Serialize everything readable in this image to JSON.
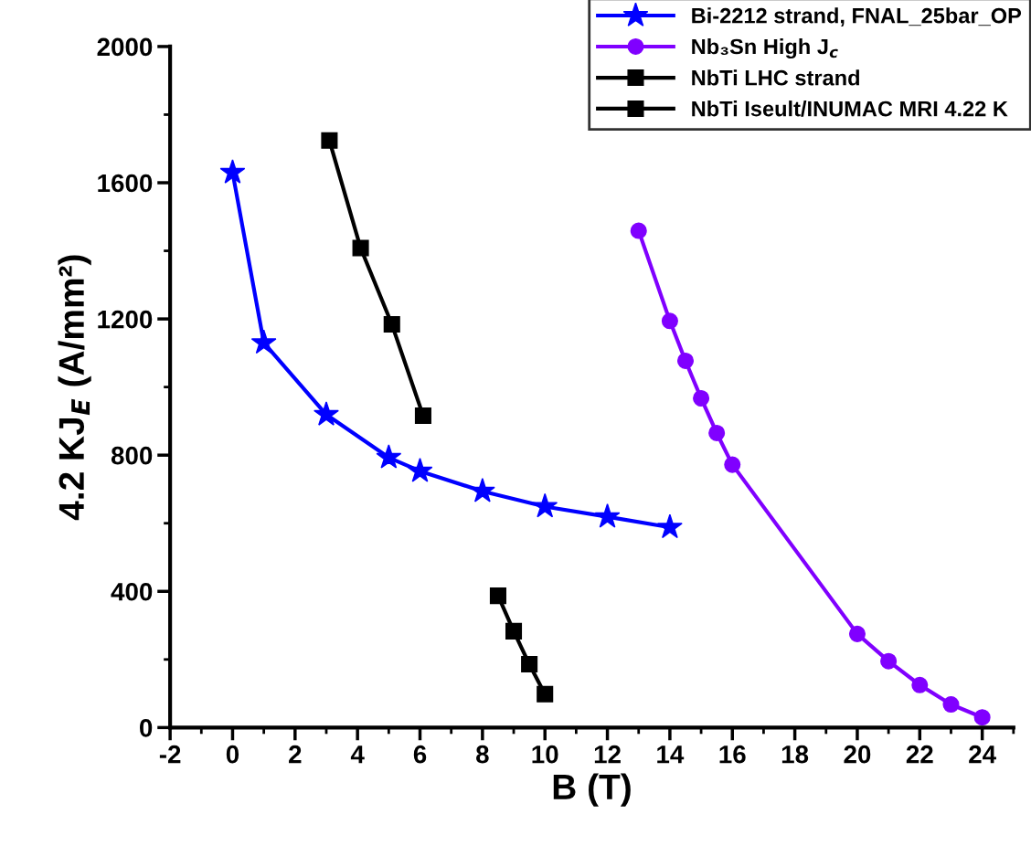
{
  "chart_data": {
    "type": "line",
    "xlabel": "B (T)",
    "ylabel": "4.2 KJ$_{E}$ (A/mm²)",
    "xlim": [
      -2,
      25
    ],
    "xticks": [
      -2,
      0,
      2,
      4,
      6,
      8,
      10,
      12,
      14,
      16,
      18,
      20,
      22,
      24
    ],
    "ylim": [
      0,
      2000
    ],
    "yticks": [
      0,
      400,
      800,
      1200,
      1600,
      2000
    ],
    "grid": false,
    "legend": "top right",
    "line_style": "solid",
    "series": [
      {
        "name": "Bi-2212 strand, FNAL_25bar_OP",
        "color": "#0000ff",
        "marker": "star",
        "x": [
          0,
          1,
          3,
          5,
          6,
          8,
          10,
          12,
          14
        ],
        "values": [
          1630,
          1130,
          919,
          793,
          753,
          694,
          649,
          619,
          588
        ]
      },
      {
        "name": "Nb₃Sn High J$_{c}$",
        "color": "#8000ff",
        "marker": "circle",
        "x": [
          13,
          14,
          14.5,
          15,
          15.5,
          16,
          20,
          21,
          22,
          23,
          24
        ],
        "values": [
          1459,
          1194,
          1077,
          967,
          865,
          772,
          275,
          195,
          125,
          68,
          30
        ]
      },
      {
        "name": "NbTi LHC strand",
        "color": "#000000",
        "marker": "square",
        "x": [
          3.1,
          4.1,
          5.1,
          6.1
        ],
        "values": [
          1724,
          1408,
          1184,
          916
        ]
      },
      {
        "name": "NbTi Iseult/INUMAC MRI 4.22 K",
        "color": "#000000",
        "marker": "square",
        "x": [
          8.5,
          9,
          9.5,
          10
        ],
        "values": [
          387,
          283,
          186,
          98
        ]
      }
    ]
  }
}
